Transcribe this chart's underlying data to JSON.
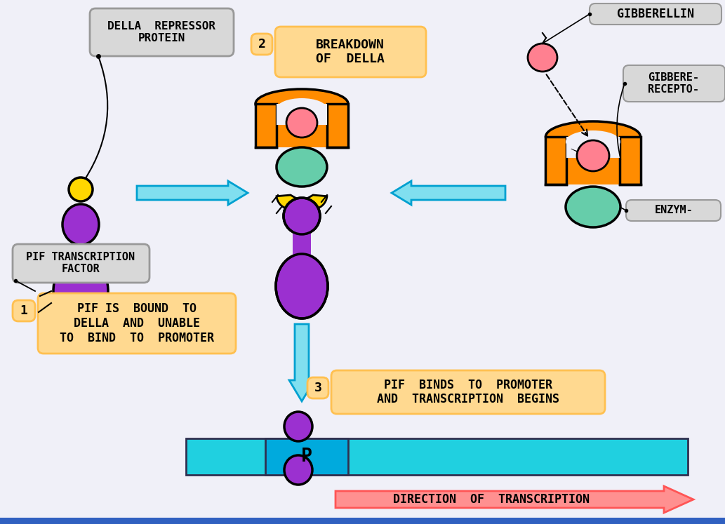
{
  "bg_color": "#f0f0f8",
  "labels": {
    "della_repressor": "DELLA  REPRESSOR\nPROTEIN",
    "pif_factor": "PIF TRANSCRIPTION\nFACTOR",
    "box1_num": "1",
    "box1_text": "PIF IS  BOUND  TO\nDELLA  AND  UNABLE\nTO  BIND  TO  PROMOTER",
    "box2_num": "2",
    "box2_text": "BREAKDOWN\nOF  DELLA",
    "box3_num": "3",
    "box3_text": "PIF  BINDS  TO  PROMOTER\nAND  TRANSCRIPTION  BEGINS",
    "gibberellin": "GIBBERELLIN",
    "gibberellin_receptor": "GIBBERE-\nRECEPTO-",
    "enzyme": "ENZYM-",
    "direction": "DIRECTION  OF  TRANSCRIPTION",
    "promoter": "P"
  },
  "colors": {
    "purple": "#9B30D0",
    "yellow": "#FFD700",
    "orange": "#FF8C00",
    "green": "#66CDAA",
    "pink": "#FF8090",
    "cyan_dark": "#00A0D0",
    "arrow_cyan": "#80DFEF",
    "box_orange_bg": "#FFD990",
    "box_orange_border": "#FFC050",
    "box_gray_bg": "#D8D8D8",
    "box_gray_border": "#999999",
    "black": "#000000",
    "dna_cyan": "#20D0E0",
    "dna_blue": "#00AADD",
    "bottom_blue": "#3060C0",
    "dir_pink": "#FF9090",
    "dir_border": "#FF5555"
  }
}
